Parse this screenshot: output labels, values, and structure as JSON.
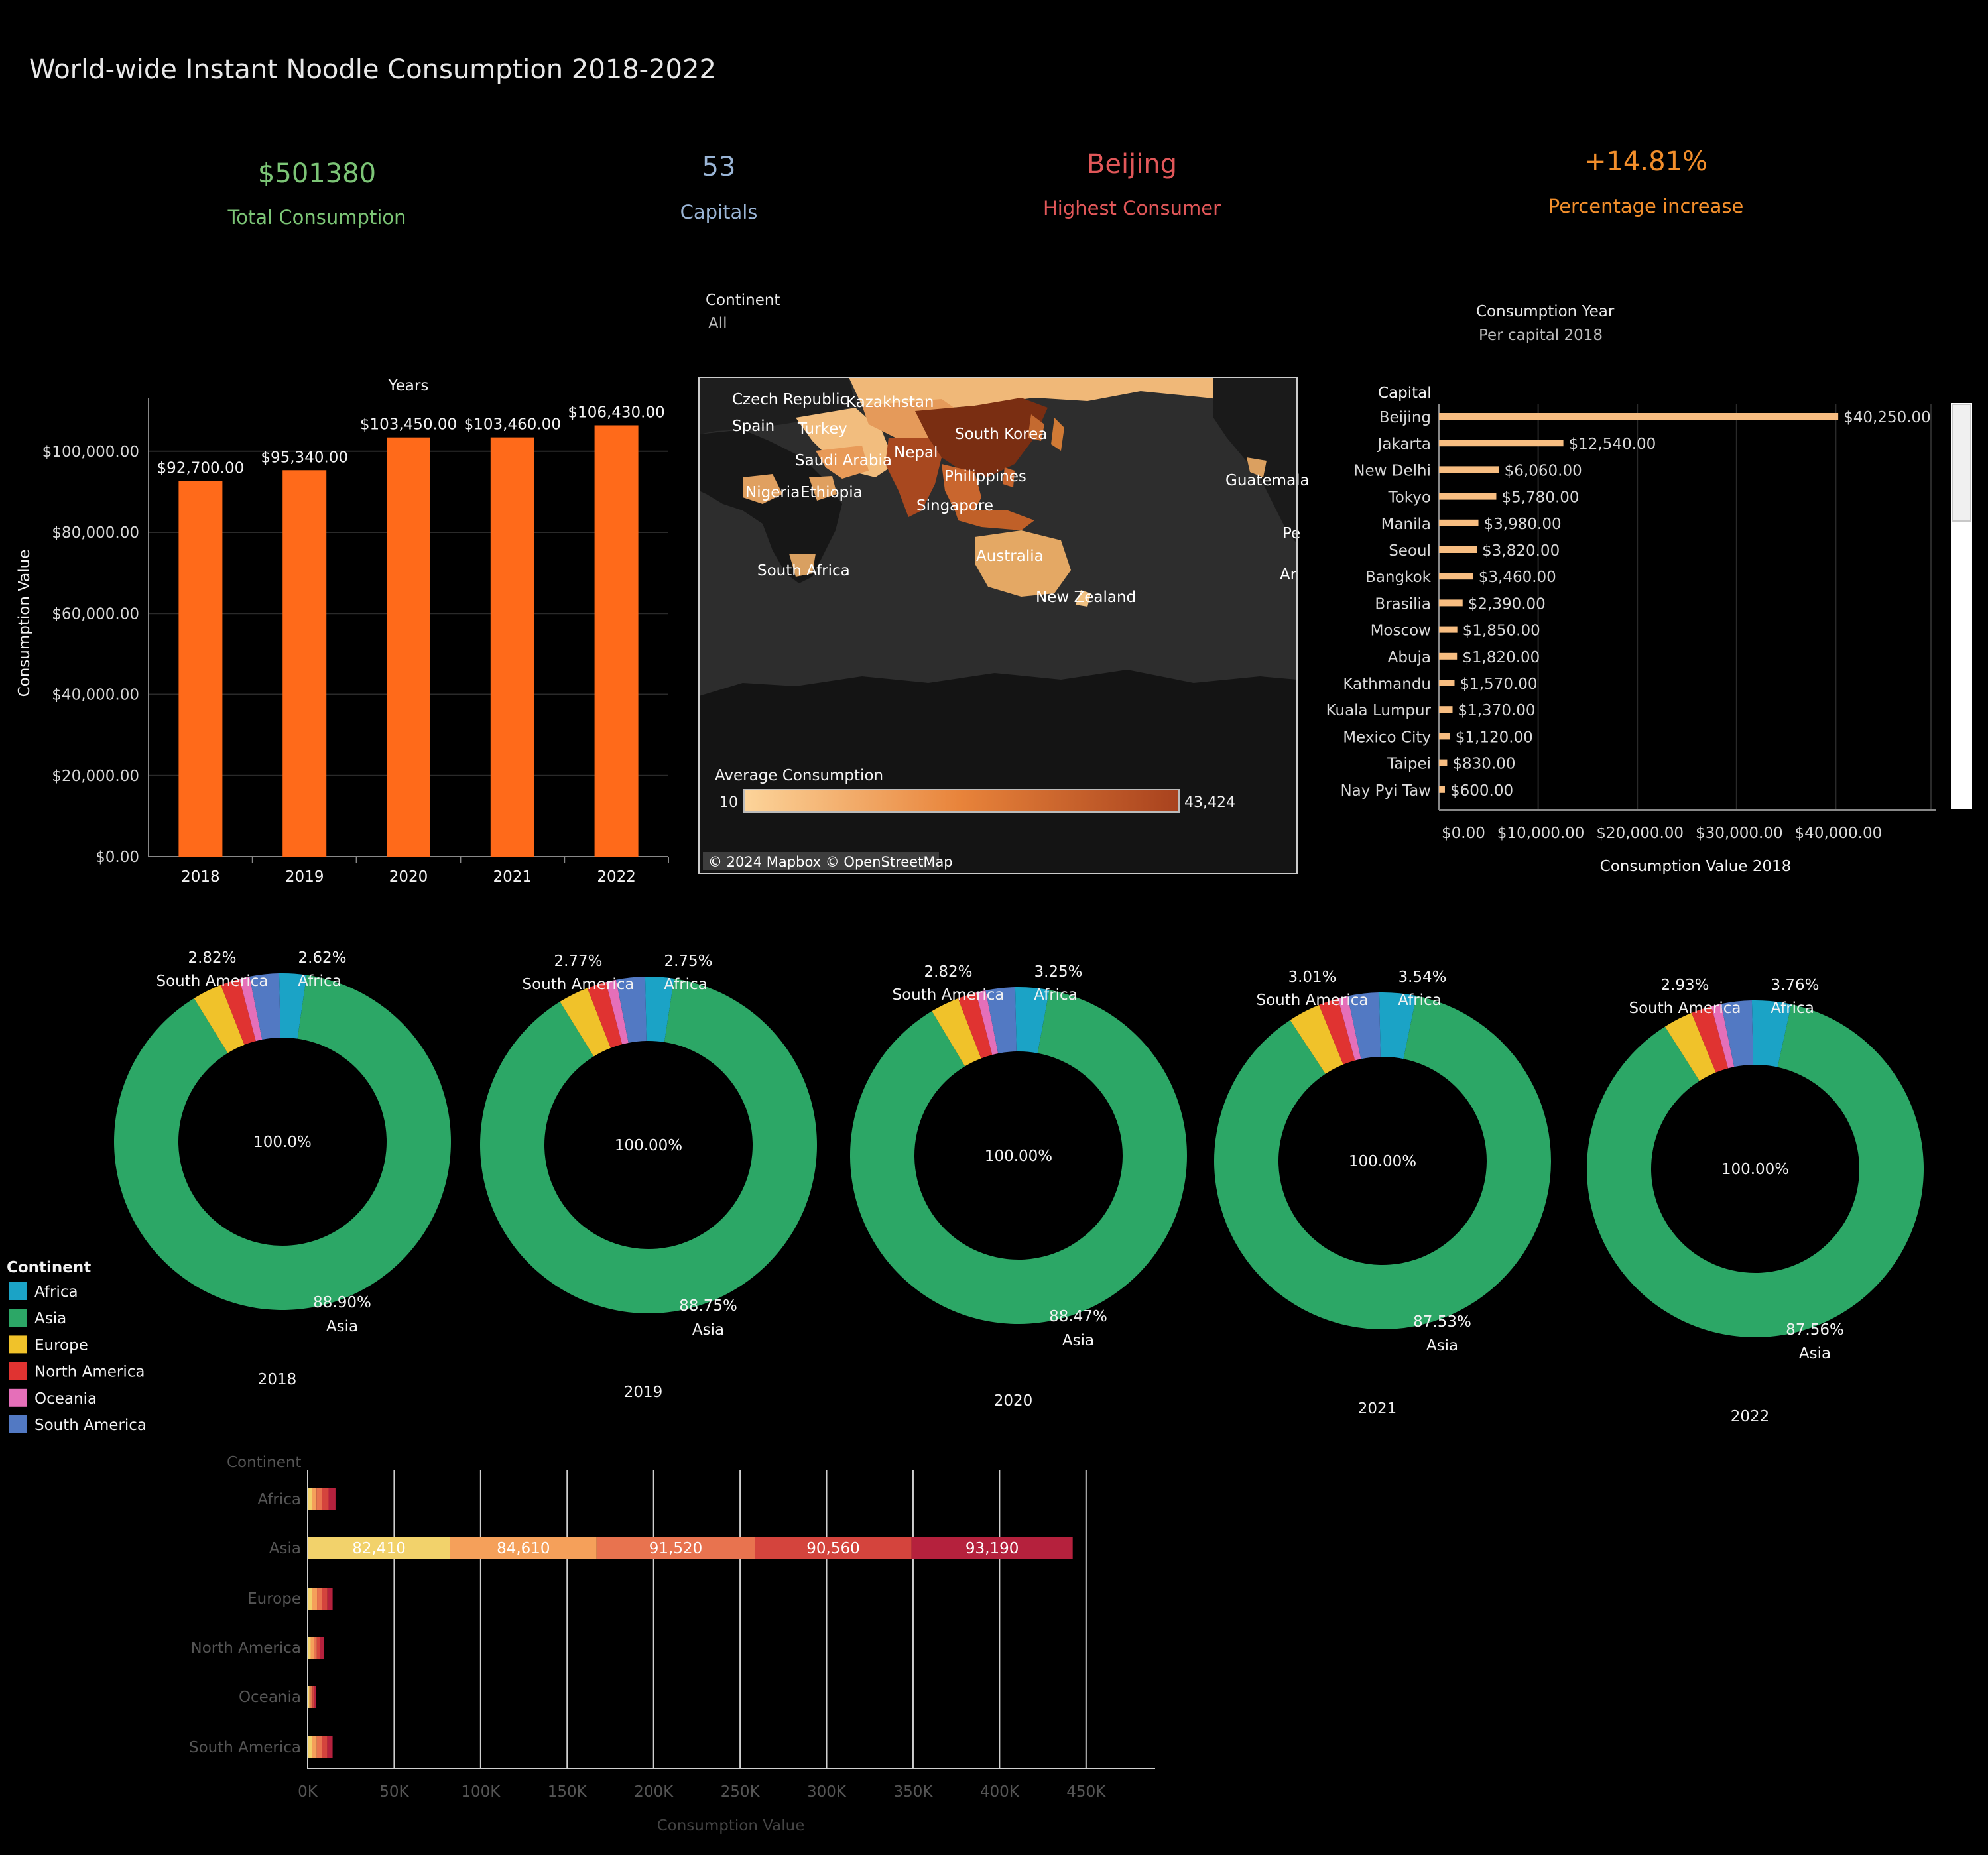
{
  "title": "World-wide Instant Noodle Consumption 2018-2022",
  "kpis": [
    {
      "value": "$501380",
      "label": "Total Consumption",
      "color": "#7cc576"
    },
    {
      "value": "53",
      "label": "Capitals",
      "color": "#9ab5d6"
    },
    {
      "value": "Beijing",
      "label": "Highest Consumer",
      "color": "#e15759"
    },
    {
      "value": "+14.81%",
      "label": "Percentage increase",
      "color": "#f28e2b"
    }
  ],
  "filters": {
    "continent": {
      "label": "Continent",
      "value": "All"
    },
    "year": {
      "label": "Consumption Year",
      "value": "Per capital 2018"
    }
  },
  "map": {
    "legend_title": "Average Consumption",
    "legend_min": "10",
    "legend_max": "43,424",
    "attribution": "© 2024 Mapbox © OpenStreetMap",
    "labels": [
      "Czech Republic",
      "Kazakhstan",
      "Spain",
      "Turkey",
      "Saudi Arabia",
      "Nepal",
      "South Korea",
      "Philippines",
      "Nigeria",
      "Ethiopia",
      "Singapore",
      "Guatemala",
      "Australia",
      "South Africa",
      "New Zealand",
      "Pe",
      "Ar"
    ]
  },
  "chart_data": [
    {
      "type": "bar",
      "title": "Years",
      "ylabel": "Consumption Value",
      "categories": [
        "2018",
        "2019",
        "2020",
        "2021",
        "2022"
      ],
      "values": [
        92700,
        95340,
        103450,
        103460,
        106430
      ],
      "value_labels": [
        "$92,700.00",
        "$95,340.00",
        "$103,450.00",
        "$103,460.00",
        "$106,430.00"
      ],
      "yticks": [
        0,
        20000,
        40000,
        60000,
        80000,
        100000
      ],
      "ytick_labels": [
        "$0.00",
        "$20,000.00",
        "$40,000.00",
        "$60,000.00",
        "$80,000.00",
        "$100,000.00"
      ],
      "ylim": [
        0,
        116000
      ],
      "color": "#ff6a1a"
    },
    {
      "type": "bar",
      "orientation": "horizontal",
      "ylabel": "Capital",
      "xlabel": "Consumption Value 2018",
      "categories": [
        "Beijing",
        "Jakarta",
        "New Delhi",
        "Tokyo",
        "Manila",
        "Seoul",
        "Bangkok",
        "Brasilia",
        "Moscow",
        "Abuja",
        "Kathmandu",
        "Kuala Lumpur",
        "Mexico City",
        "Taipei",
        "Nay Pyi Taw"
      ],
      "values": [
        40250,
        12540,
        6060,
        5780,
        3980,
        3820,
        3460,
        2390,
        1850,
        1820,
        1570,
        1370,
        1120,
        830,
        600
      ],
      "value_labels": [
        "$40,250.00",
        "$12,540.00",
        "$6,060.00",
        "$5,780.00",
        "$3,980.00",
        "$3,820.00",
        "$3,460.00",
        "$2,390.00",
        "$1,850.00",
        "$1,820.00",
        "$1,570.00",
        "$1,370.00",
        "$1,120.00",
        "$830.00",
        "$600.00"
      ],
      "xticks": [
        0,
        10000,
        20000,
        30000,
        40000
      ],
      "xtick_labels": [
        "$0.00",
        "$10,000.00",
        "$20,000.00",
        "$30,000.00",
        "$40,000.00"
      ],
      "xlim": [
        0,
        50000
      ],
      "color": "#f7bd81"
    },
    {
      "type": "pie",
      "legend_title": "Continent",
      "legend_placement": "left",
      "legend": [
        {
          "name": "Africa",
          "color": "#1ba3c6"
        },
        {
          "name": "Asia",
          "color": "#2ca766"
        },
        {
          "name": "Europe",
          "color": "#f0c22a"
        },
        {
          "name": "North America",
          "color": "#e03331"
        },
        {
          "name": "Oceania",
          "color": "#e56fb9"
        },
        {
          "name": "South America",
          "color": "#5279c3"
        }
      ],
      "center_labels": [
        "100.0%",
        "100.00%",
        "100.00%",
        "100.00%",
        "100.00%"
      ],
      "years": [
        {
          "year": "2018",
          "shares": [
            2.62,
            88.9,
            2.83,
            1.85,
            0.98,
            2.82
          ],
          "labels": {
            "africa": "2.62%",
            "asia": "88.90%",
            "sa": "2.82%"
          }
        },
        {
          "year": "2019",
          "shares": [
            2.75,
            88.75,
            2.89,
            1.84,
            0.99,
            2.77
          ],
          "labels": {
            "africa": "2.75%",
            "asia": "88.75%",
            "sa": "2.77%"
          }
        },
        {
          "year": "2020",
          "shares": [
            3.25,
            88.47,
            2.75,
            1.78,
            0.93,
            2.82
          ],
          "labels": {
            "africa": "3.25%",
            "asia": "88.47%",
            "sa": "2.82%"
          }
        },
        {
          "year": "2021",
          "shares": [
            3.54,
            87.53,
            3.08,
            1.9,
            0.94,
            3.01
          ],
          "labels": {
            "africa": "3.54%",
            "asia": "87.53%",
            "sa": "3.01%"
          }
        },
        {
          "year": "2022",
          "shares": [
            3.76,
            87.56,
            2.82,
            1.98,
            0.95,
            2.93
          ],
          "labels": {
            "africa": "3.76%",
            "asia": "87.56%",
            "sa": "2.93%"
          }
        }
      ]
    },
    {
      "type": "bar",
      "orientation": "horizontal",
      "stacked": true,
      "ylabel": "Continent",
      "xlabel": "Consumption Value",
      "categories": [
        "Africa",
        "Asia",
        "Europe",
        "North America",
        "Oceania",
        "South America"
      ],
      "series": [
        {
          "name": "2018",
          "color": "#f2d26b",
          "values": [
            2430,
            82410,
            2620,
            1720,
            910,
            2610
          ]
        },
        {
          "name": "2019",
          "color": "#f5a05a",
          "values": [
            2620,
            84610,
            2760,
            1750,
            940,
            2640
          ]
        },
        {
          "name": "2020",
          "color": "#e8734f",
          "values": [
            3360,
            91520,
            2840,
            1840,
            960,
            2920
          ]
        },
        {
          "name": "2021",
          "color": "#d4443d",
          "values": [
            3660,
            90560,
            3190,
            1970,
            970,
            3110
          ]
        },
        {
          "name": "2022",
          "color": "#b5213d",
          "values": [
            4000,
            93190,
            3000,
            2110,
            1010,
            3120
          ]
        }
      ],
      "segment_labels": [
        [
          "",
          "",
          "",
          "",
          ""
        ],
        [
          "82,410",
          "84,610",
          "91,520",
          "90,560",
          "93,190"
        ],
        [
          "",
          "",
          "",
          "",
          ""
        ],
        [
          "",
          "",
          "",
          "",
          ""
        ],
        [
          "",
          "",
          "",
          "",
          ""
        ],
        [
          "",
          "",
          "",
          "",
          ""
        ]
      ],
      "xticks": [
        0,
        50000,
        100000,
        150000,
        200000,
        250000,
        300000,
        350000,
        400000,
        450000
      ],
      "xtick_labels": [
        "0K",
        "50K",
        "100K",
        "150K",
        "200K",
        "250K",
        "300K",
        "350K",
        "400K",
        "450K"
      ],
      "xlim": [
        0,
        460000
      ]
    }
  ]
}
